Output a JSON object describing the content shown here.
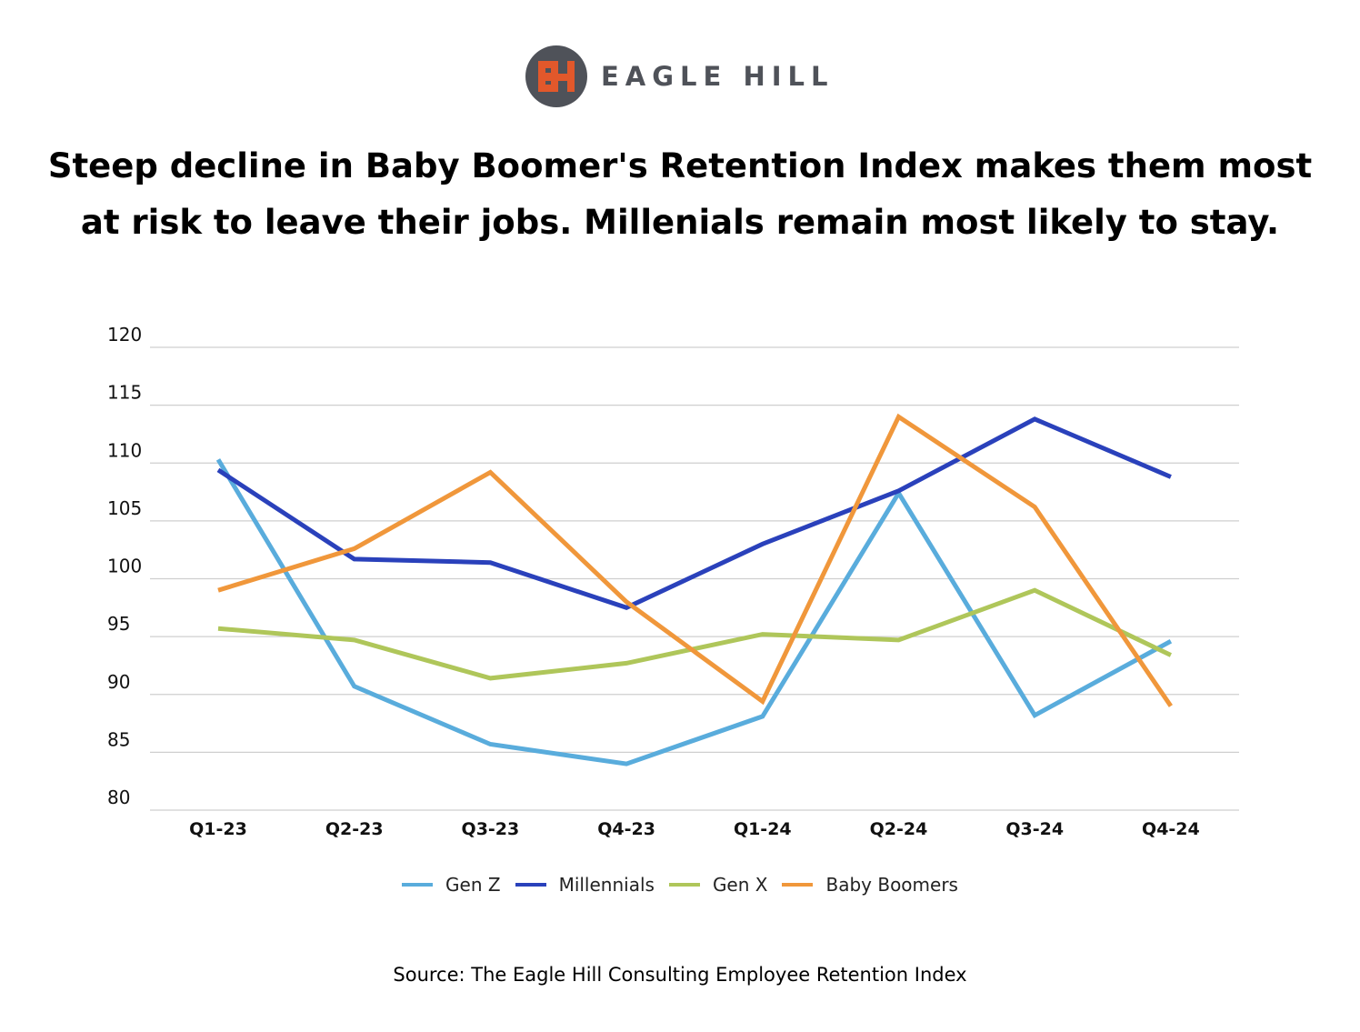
{
  "brand": {
    "name": "EAGLE HILL",
    "logo_icon": "eagle-hill-logo-icon",
    "logo_circle_color": "#4f5259",
    "logo_mark_color": "#e2582b"
  },
  "headline": {
    "line1": "Steep decline in Baby Boomer's Retention Index makes them most",
    "line2": "at risk to leave their jobs. Millenials remain most likely to stay."
  },
  "chart_data": {
    "type": "line",
    "categories": [
      "Q1-23",
      "Q2-23",
      "Q3-23",
      "Q4-23",
      "Q1-24",
      "Q2-24",
      "Q3-24",
      "Q4-24"
    ],
    "ylim": [
      80,
      120
    ],
    "yticks": [
      "80",
      "85",
      "90",
      "95",
      "100",
      "105",
      "110",
      "115",
      "120"
    ],
    "grid": true,
    "legend_position": "bottom",
    "series": [
      {
        "name": "Gen Z",
        "color": "#59acdc",
        "values": [
          110.3,
          90.7,
          85.7,
          84.0,
          88.1,
          107.4,
          88.2,
          94.6
        ]
      },
      {
        "name": "Millennials",
        "color": "#2a41bb",
        "values": [
          109.4,
          101.7,
          101.4,
          97.5,
          103.0,
          107.6,
          113.8,
          108.8
        ]
      },
      {
        "name": "Gen X",
        "color": "#afc65a",
        "values": [
          95.7,
          94.7,
          91.4,
          92.7,
          95.2,
          94.7,
          99.0,
          93.4
        ]
      },
      {
        "name": "Baby Boomers",
        "color": "#f0973b",
        "values": [
          99.0,
          102.6,
          109.2,
          98.0,
          89.4,
          114.0,
          106.2,
          89.0
        ]
      }
    ]
  },
  "source": "Source: The Eagle Hill Consulting Employee Retention Index"
}
